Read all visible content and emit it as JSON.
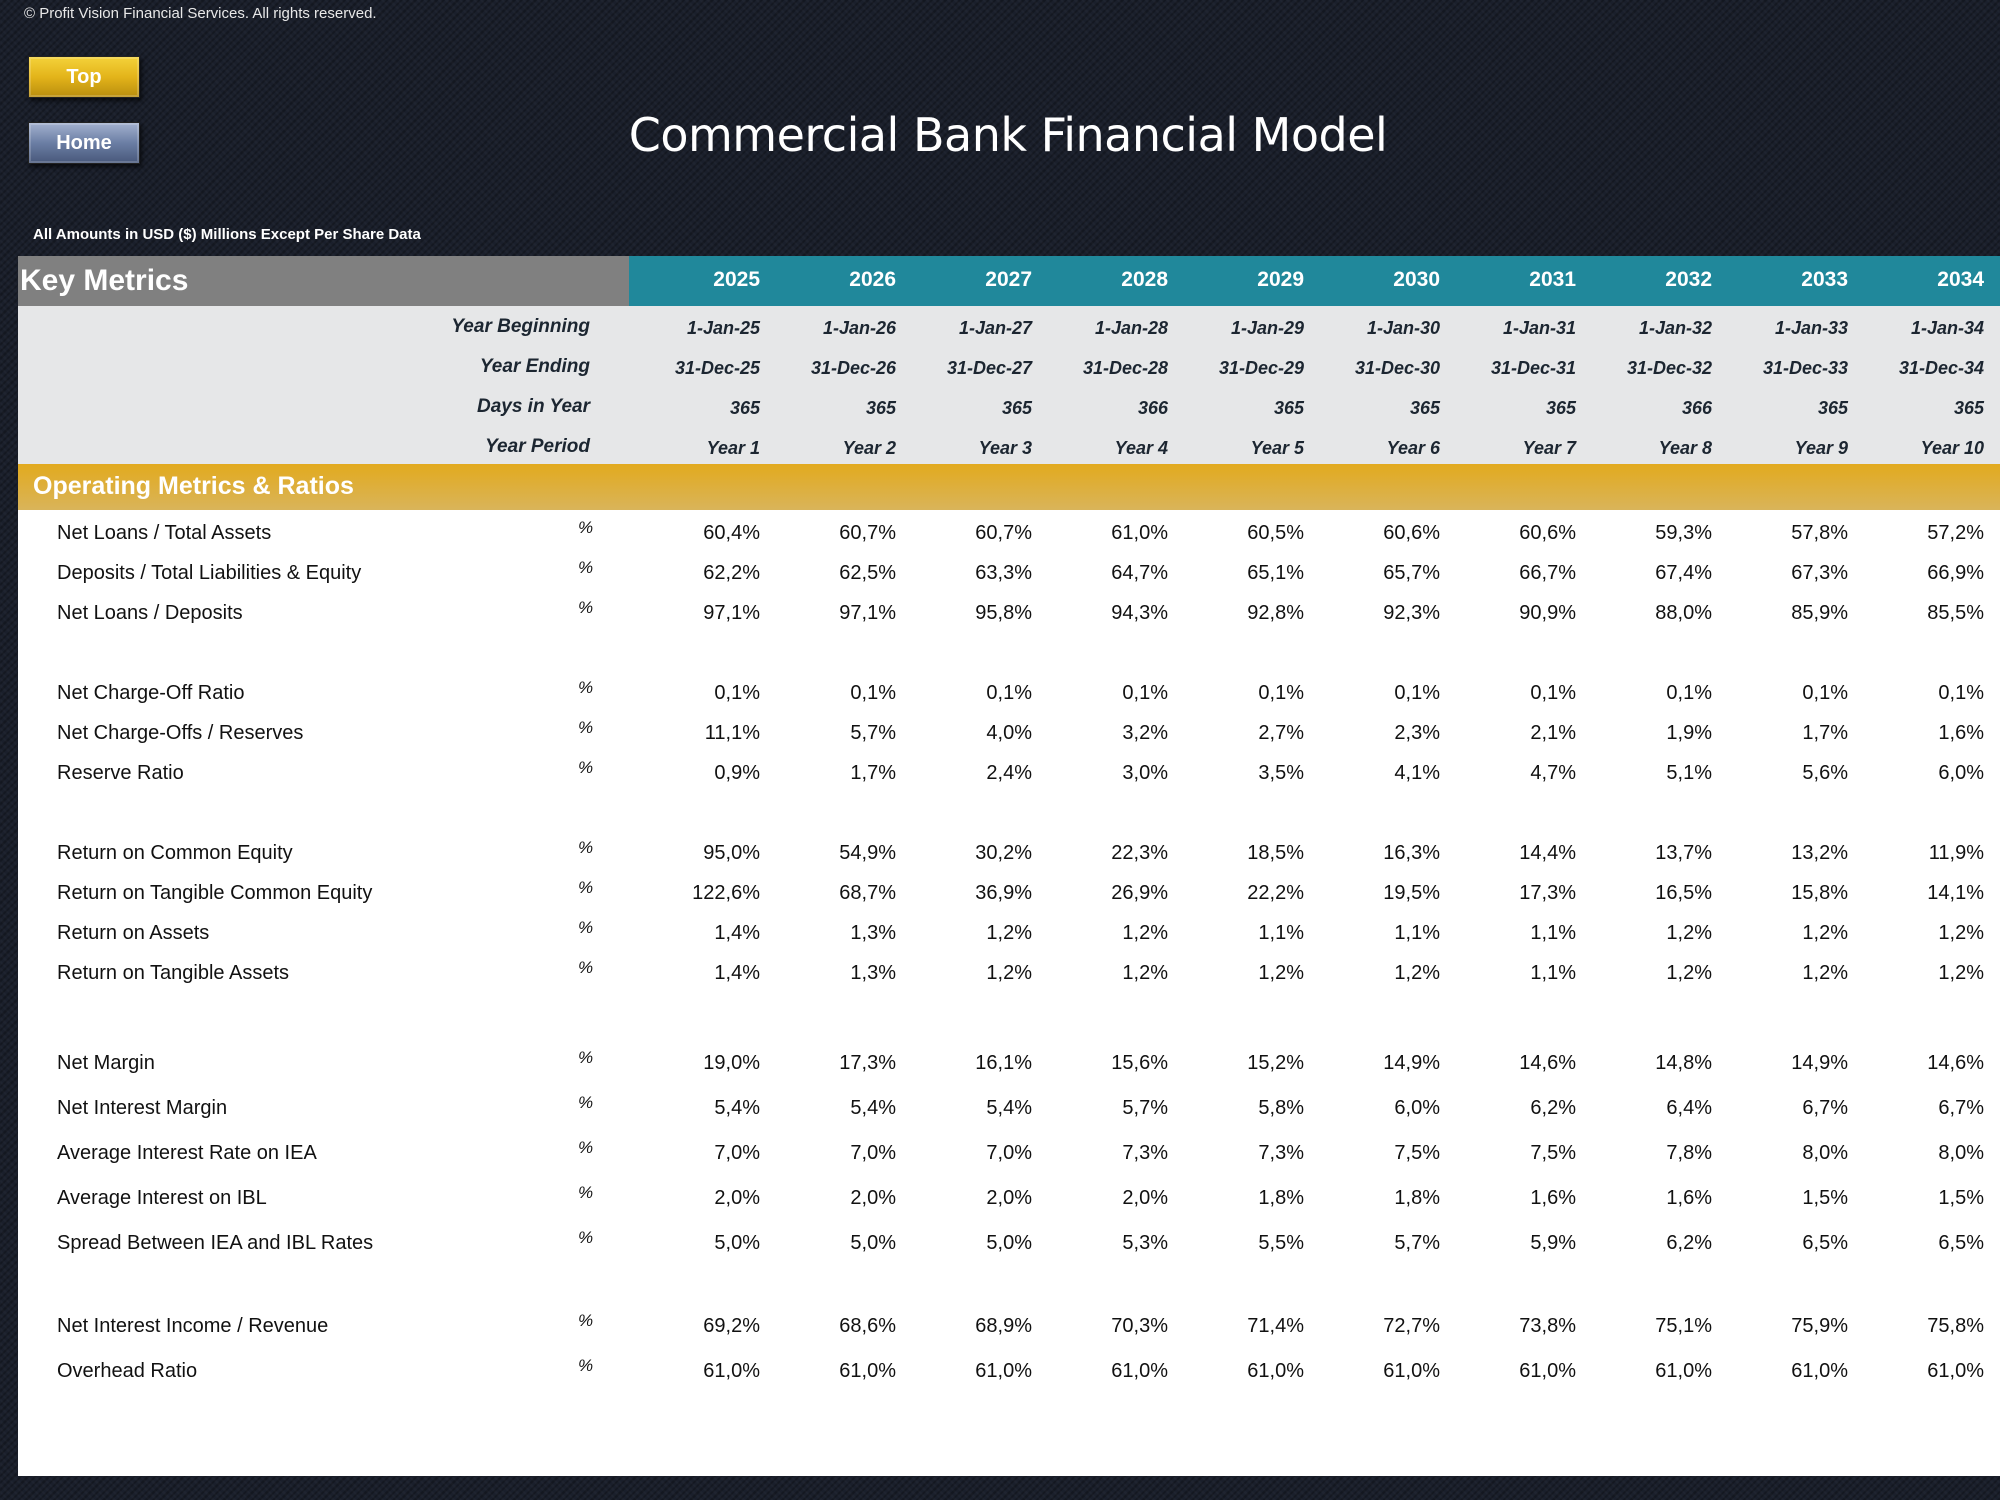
{
  "copyright": "© Profit Vision Financial Services. All rights reserved.",
  "buttons": {
    "top_label": "Top",
    "home_label": "Home"
  },
  "title": "Commercial Bank Financial Model",
  "units_note": "All Amounts in  USD ($) Millions Except Per Share Data",
  "table": {
    "header_title": "Key Metrics",
    "years": [
      "2025",
      "2026",
      "2027",
      "2028",
      "2029",
      "2030",
      "2031",
      "2032",
      "2033",
      "2034"
    ],
    "date_rows": [
      {
        "label": "Year Beginning",
        "values": [
          "1-Jan-25",
          "1-Jan-26",
          "1-Jan-27",
          "1-Jan-28",
          "1-Jan-29",
          "1-Jan-30",
          "1-Jan-31",
          "1-Jan-32",
          "1-Jan-33",
          "1-Jan-34"
        ]
      },
      {
        "label": "Year Ending",
        "values": [
          "31-Dec-25",
          "31-Dec-26",
          "31-Dec-27",
          "31-Dec-28",
          "31-Dec-29",
          "31-Dec-30",
          "31-Dec-31",
          "31-Dec-32",
          "31-Dec-33",
          "31-Dec-34"
        ]
      },
      {
        "label": "Days in Year",
        "values": [
          "365",
          "365",
          "365",
          "366",
          "365",
          "365",
          "365",
          "366",
          "365",
          "365"
        ]
      },
      {
        "label": "Year Period",
        "values": [
          "Year 1",
          "Year 2",
          "Year 3",
          "Year 4",
          "Year 5",
          "Year 6",
          "Year 7",
          "Year 8",
          "Year 9",
          "Year 10"
        ]
      }
    ],
    "section_title": "Operating Metrics & Ratios",
    "metrics": [
      {
        "label": "Net Loans / Total Assets",
        "unit": "%",
        "values": [
          "60,4%",
          "60,7%",
          "60,7%",
          "61,0%",
          "60,5%",
          "60,6%",
          "60,6%",
          "59,3%",
          "57,8%",
          "57,2%"
        ]
      },
      {
        "label": "Deposits / Total Liabilities & Equity",
        "unit": "%",
        "values": [
          "62,2%",
          "62,5%",
          "63,3%",
          "64,7%",
          "65,1%",
          "65,7%",
          "66,7%",
          "67,4%",
          "67,3%",
          "66,9%"
        ]
      },
      {
        "label": "Net Loans / Deposits",
        "unit": "%",
        "values": [
          "97,1%",
          "97,1%",
          "95,8%",
          "94,3%",
          "92,8%",
          "92,3%",
          "90,9%",
          "88,0%",
          "85,9%",
          "85,5%"
        ]
      },
      {
        "label": "Net Charge-Off Ratio",
        "unit": "%",
        "values": [
          "0,1%",
          "0,1%",
          "0,1%",
          "0,1%",
          "0,1%",
          "0,1%",
          "0,1%",
          "0,1%",
          "0,1%",
          "0,1%"
        ]
      },
      {
        "label": "Net Charge-Offs / Reserves",
        "unit": "%",
        "values": [
          "11,1%",
          "5,7%",
          "4,0%",
          "3,2%",
          "2,7%",
          "2,3%",
          "2,1%",
          "1,9%",
          "1,7%",
          "1,6%"
        ]
      },
      {
        "label": "Reserve Ratio",
        "unit": "%",
        "values": [
          "0,9%",
          "1,7%",
          "2,4%",
          "3,0%",
          "3,5%",
          "4,1%",
          "4,7%",
          "5,1%",
          "5,6%",
          "6,0%"
        ]
      },
      {
        "label": "Return on Common Equity",
        "unit": "%",
        "values": [
          "95,0%",
          "54,9%",
          "30,2%",
          "22,3%",
          "18,5%",
          "16,3%",
          "14,4%",
          "13,7%",
          "13,2%",
          "11,9%"
        ]
      },
      {
        "label": "Return on Tangible Common Equity",
        "unit": "%",
        "values": [
          "122,6%",
          "68,7%",
          "36,9%",
          "26,9%",
          "22,2%",
          "19,5%",
          "17,3%",
          "16,5%",
          "15,8%",
          "14,1%"
        ]
      },
      {
        "label": "Return on Assets",
        "unit": "%",
        "values": [
          "1,4%",
          "1,3%",
          "1,2%",
          "1,2%",
          "1,1%",
          "1,1%",
          "1,1%",
          "1,2%",
          "1,2%",
          "1,2%"
        ]
      },
      {
        "label": "Return on Tangible Assets",
        "unit": "%",
        "values": [
          "1,4%",
          "1,3%",
          "1,2%",
          "1,2%",
          "1,2%",
          "1,2%",
          "1,1%",
          "1,2%",
          "1,2%",
          "1,2%"
        ]
      },
      {
        "label": "Net Margin",
        "unit": "%",
        "values": [
          "19,0%",
          "17,3%",
          "16,1%",
          "15,6%",
          "15,2%",
          "14,9%",
          "14,6%",
          "14,8%",
          "14,9%",
          "14,6%"
        ]
      },
      {
        "label": "Net Interest Margin",
        "unit": "%",
        "values": [
          "5,4%",
          "5,4%",
          "5,4%",
          "5,7%",
          "5,8%",
          "6,0%",
          "6,2%",
          "6,4%",
          "6,7%",
          "6,7%"
        ]
      },
      {
        "label": "Average Interest Rate on IEA",
        "unit": "%",
        "values": [
          "7,0%",
          "7,0%",
          "7,0%",
          "7,3%",
          "7,3%",
          "7,5%",
          "7,5%",
          "7,8%",
          "8,0%",
          "8,0%"
        ]
      },
      {
        "label": "Average Interest on IBL",
        "unit": "%",
        "values": [
          "2,0%",
          "2,0%",
          "2,0%",
          "2,0%",
          "1,8%",
          "1,8%",
          "1,6%",
          "1,6%",
          "1,5%",
          "1,5%"
        ]
      },
      {
        "label": "Spread Between IEA and IBL Rates",
        "unit": "%",
        "values": [
          "5,0%",
          "5,0%",
          "5,0%",
          "5,3%",
          "5,5%",
          "5,7%",
          "5,9%",
          "6,2%",
          "6,5%",
          "6,5%"
        ]
      },
      {
        "label": "Net Interest Income / Revenue",
        "unit": "%",
        "values": [
          "69,2%",
          "68,6%",
          "68,9%",
          "70,3%",
          "71,4%",
          "72,7%",
          "73,8%",
          "75,1%",
          "75,9%",
          "75,8%"
        ]
      },
      {
        "label": "Overhead Ratio",
        "unit": "%",
        "values": [
          "61,0%",
          "61,0%",
          "61,0%",
          "61,0%",
          "61,0%",
          "61,0%",
          "61,0%",
          "61,0%",
          "61,0%",
          "61,0%"
        ]
      }
    ]
  },
  "colors": {
    "background": "#1a1f2b",
    "header_teal": "#20889b",
    "header_grey": "#808080",
    "section_gold": "#e2aa1e",
    "dates_band": "#e6e7e8",
    "button_gold": "#e3b41a",
    "button_blue": "#6b7ea4"
  }
}
